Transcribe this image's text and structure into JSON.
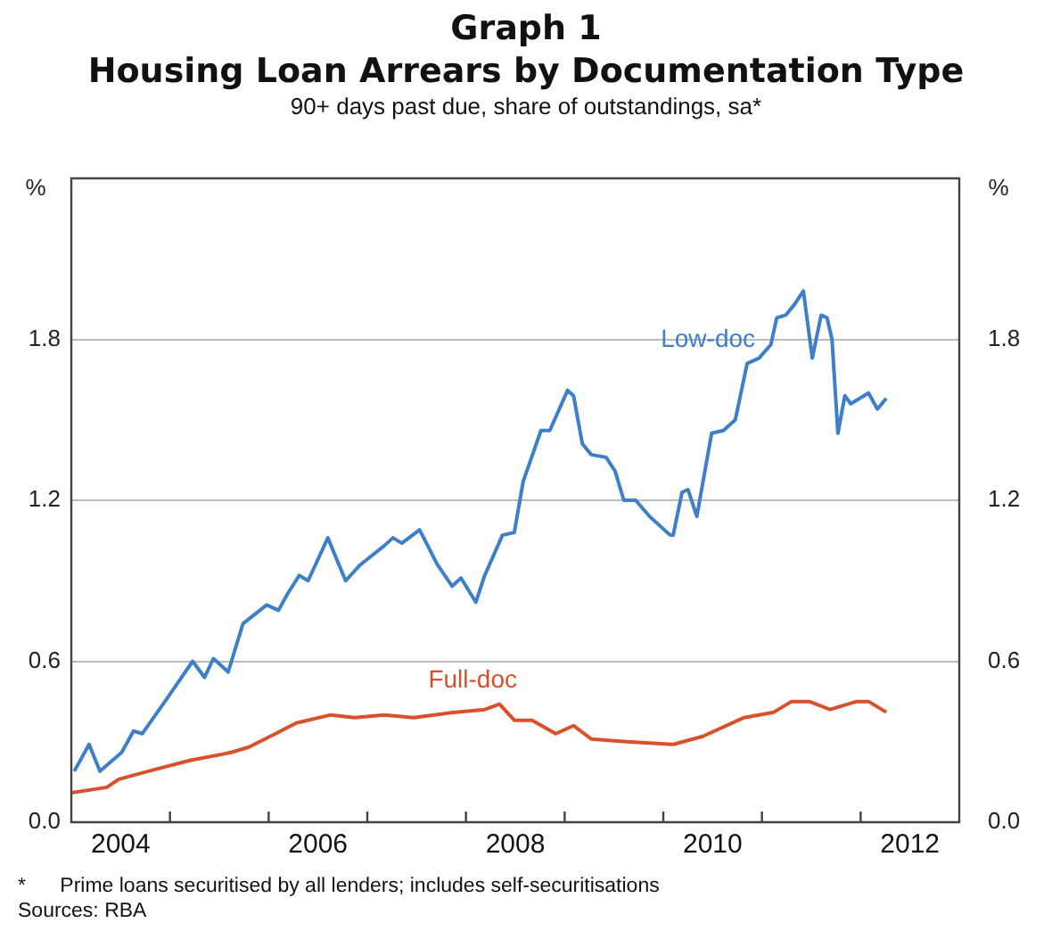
{
  "chart_data": {
    "type": "line",
    "title": "Graph 1\nHousing Loan Arrears by Documentation Type",
    "subtitle": "90+ days past due, share of outstandings, sa*",
    "ylabel": "%",
    "y2label": "%",
    "xlim": [
      2004,
      2013
    ],
    "xticks": [
      {
        "value": 2004.5,
        "label": "2004"
      },
      {
        "value": 2005,
        "label": null
      },
      {
        "value": 2006,
        "label": null
      },
      {
        "value": 2006.5,
        "label": "2006"
      },
      {
        "value": 2007,
        "label": null
      },
      {
        "value": 2008,
        "label": null
      },
      {
        "value": 2008.5,
        "label": "2008"
      },
      {
        "value": 2009,
        "label": null
      },
      {
        "value": 2010,
        "label": null
      },
      {
        "value": 2010.5,
        "label": "2010"
      },
      {
        "value": 2011,
        "label": null
      },
      {
        "value": 2012,
        "label": null
      },
      {
        "value": 2012.5,
        "label": "2012"
      }
    ],
    "ylim": [
      0,
      2.4
    ],
    "yticks": [
      {
        "value": 0,
        "label": "0.0"
      },
      {
        "value": 0.6,
        "label": "0.6"
      },
      {
        "value": 1.2,
        "label": "1.2"
      },
      {
        "value": 1.8,
        "label": "1.8"
      }
    ],
    "y2lim": [
      0,
      2.4
    ],
    "y2ticks": [
      {
        "value": 0,
        "label": "0.0"
      },
      {
        "value": 0.6,
        "label": "0.6"
      },
      {
        "value": 1.2,
        "label": "1.2"
      },
      {
        "value": 1.8,
        "label": "1.8"
      }
    ],
    "grid": "y",
    "legend": false,
    "marker": "none",
    "line_style": "solid",
    "series": [
      {
        "name": "Low-doc",
        "color": "#3d7fc9",
        "x": [
          2004.03,
          2004.18,
          2004.29,
          2004.51,
          2004.63,
          2004.72,
          2004.93,
          2005.08,
          2005.23,
          2005.35,
          2005.44,
          2005.59,
          2005.74,
          2005.98,
          2006.1,
          2006.19,
          2006.31,
          2006.4,
          2006.6,
          2006.78,
          2006.93,
          2007.17,
          2007.26,
          2007.35,
          2007.53,
          2007.71,
          2007.86,
          2007.95,
          2008.1,
          2008.19,
          2008.37,
          2008.49,
          2008.58,
          2008.76,
          2008.85,
          2009.03,
          2009.09,
          2009.18,
          2009.27,
          2009.42,
          2009.51,
          2009.6,
          2009.72,
          2009.86,
          2010.07,
          2010.1,
          2010.19,
          2010.25,
          2010.34,
          2010.49,
          2010.61,
          2010.73,
          2010.85,
          2010.97,
          2011.09,
          2011.15,
          2011.24,
          2011.33,
          2011.42,
          2011.51,
          2011.6,
          2011.66,
          2011.71,
          2011.77,
          2011.84,
          2011.9,
          2012.08,
          2012.17,
          2012.26
        ],
        "values": [
          0.19,
          0.29,
          0.19,
          0.26,
          0.34,
          0.33,
          0.44,
          0.52,
          0.6,
          0.54,
          0.61,
          0.56,
          0.74,
          0.81,
          0.79,
          0.85,
          0.92,
          0.9,
          1.06,
          0.9,
          0.96,
          1.03,
          1.06,
          1.04,
          1.09,
          0.96,
          0.88,
          0.91,
          0.82,
          0.92,
          1.07,
          1.08,
          1.27,
          1.46,
          1.46,
          1.61,
          1.59,
          1.41,
          1.37,
          1.36,
          1.31,
          1.2,
          1.2,
          1.14,
          1.07,
          1.07,
          1.23,
          1.24,
          1.14,
          1.45,
          1.46,
          1.5,
          1.71,
          1.73,
          1.78,
          1.88,
          1.89,
          1.93,
          1.98,
          1.73,
          1.89,
          1.88,
          1.8,
          1.45,
          1.59,
          1.56,
          1.6,
          1.54,
          1.58
        ]
      },
      {
        "name": "Full-doc",
        "color": "#d9502b",
        "x": [
          2004.0,
          2004.36,
          2004.48,
          2004.78,
          2005.2,
          2005.62,
          2005.8,
          2006.07,
          2006.28,
          2006.63,
          2006.87,
          2007.17,
          2007.47,
          2007.89,
          2008.19,
          2008.34,
          2008.49,
          2008.67,
          2008.91,
          2009.09,
          2009.27,
          2009.63,
          2010.1,
          2010.4,
          2010.82,
          2011.12,
          2011.3,
          2011.48,
          2011.69,
          2011.96,
          2012.08,
          2012.26
        ],
        "values": [
          0.11,
          0.13,
          0.16,
          0.19,
          0.23,
          0.26,
          0.28,
          0.33,
          0.37,
          0.4,
          0.39,
          0.4,
          0.39,
          0.41,
          0.42,
          0.44,
          0.38,
          0.38,
          0.33,
          0.36,
          0.31,
          0.3,
          0.29,
          0.32,
          0.39,
          0.41,
          0.45,
          0.45,
          0.42,
          0.45,
          0.45,
          0.41
        ]
      }
    ],
    "annotations": [
      "*      Prime loans securitised by all lenders; includes self-securitisations",
      "Sources: RBA"
    ]
  }
}
